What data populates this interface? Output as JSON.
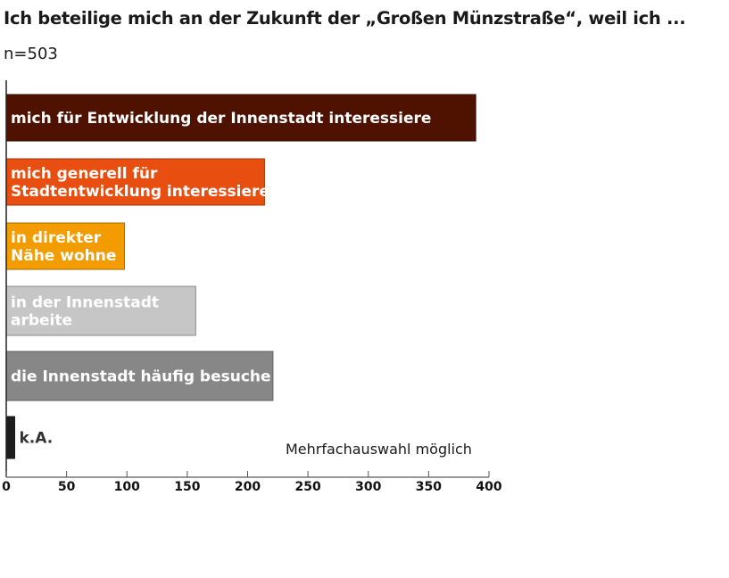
{
  "chart_data": {
    "type": "bar",
    "orientation": "horizontal",
    "title": "Ich beteilige mich an der Zukunft der „Großen Münzstraße“, weil ich  ...",
    "subtitle": "n=503",
    "annotation": "Mehrfachauswahl möglich",
    "categories": [
      [
        "mich für Entwicklung der Innenstadt interessiere"
      ],
      [
        "mich generell für",
        "Stadtentwicklung interessiere"
      ],
      [
        "in direkter",
        "Nähe wohne"
      ],
      [
        "in der Innenstadt",
        "arbeite"
      ],
      [
        "die Innenstadt häufig besuche"
      ],
      [
        "k.A."
      ]
    ],
    "values": [
      389,
      214,
      98,
      157,
      221,
      7
    ],
    "colors": [
      "#4f1200",
      "#e84e10",
      "#f39c00",
      "#c6c6c6",
      "#878787",
      "#1d1d1d"
    ],
    "label_inside": [
      true,
      true,
      true,
      true,
      true,
      false
    ],
    "xlim": [
      0,
      400
    ],
    "xticks": [
      "0",
      "50",
      "100",
      "150",
      "200",
      "250",
      "300",
      "350",
      "400"
    ],
    "grid": false,
    "xlabel": "",
    "ylabel": ""
  }
}
